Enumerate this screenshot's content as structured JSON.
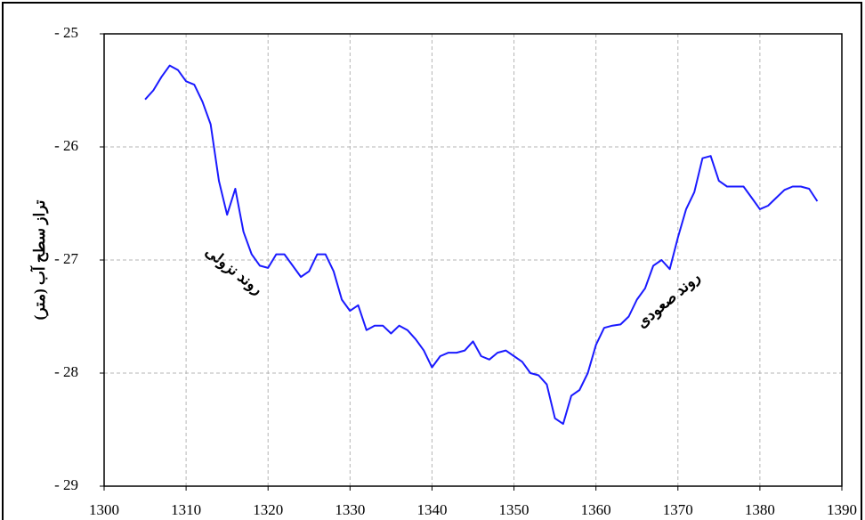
{
  "chart_data": {
    "type": "line",
    "y_label": "تراز سطح آب (متر)",
    "annotations": [
      "روند نزولی",
      "روند صعودی"
    ],
    "x": [
      1305,
      1306,
      1307,
      1308,
      1309,
      1310,
      1311,
      1312,
      1313,
      1314,
      1315,
      1316,
      1317,
      1318,
      1319,
      1320,
      1321,
      1322,
      1323,
      1324,
      1325,
      1326,
      1327,
      1328,
      1329,
      1330,
      1331,
      1332,
      1333,
      1334,
      1335,
      1336,
      1337,
      1338,
      1339,
      1340,
      1341,
      1342,
      1343,
      1344,
      1345,
      1346,
      1347,
      1348,
      1349,
      1350,
      1351,
      1352,
      1353,
      1354,
      1355,
      1356,
      1357,
      1358,
      1359,
      1360,
      1361,
      1362,
      1363,
      1364,
      1365,
      1366,
      1367,
      1368,
      1369,
      1370,
      1371,
      1372,
      1373,
      1374,
      1375,
      1376,
      1377,
      1378,
      1379,
      1380,
      1381,
      1382,
      1383,
      1384,
      1385,
      1386,
      1387
    ],
    "values": [
      -25.58,
      -25.5,
      -25.38,
      -25.28,
      -25.32,
      -25.42,
      -25.45,
      -25.6,
      -25.8,
      -26.3,
      -26.6,
      -26.37,
      -26.75,
      -26.95,
      -27.05,
      -27.07,
      -26.95,
      -26.95,
      -27.05,
      -27.15,
      -27.1,
      -26.95,
      -26.95,
      -27.1,
      -27.35,
      -27.45,
      -27.4,
      -27.62,
      -27.58,
      -27.58,
      -27.65,
      -27.58,
      -27.62,
      -27.7,
      -27.8,
      -27.95,
      -27.85,
      -27.82,
      -27.82,
      -27.8,
      -27.72,
      -27.85,
      -27.88,
      -27.82,
      -27.8,
      -27.85,
      -27.9,
      -28.0,
      -28.02,
      -28.1,
      -28.4,
      -28.45,
      -28.2,
      -28.15,
      -28.0,
      -27.75,
      -27.6,
      -27.58,
      -27.57,
      -27.5,
      -27.35,
      -27.25,
      -27.05,
      -27.0,
      -27.08,
      -26.8,
      -26.55,
      -26.4,
      -26.1,
      -26.08,
      -26.3,
      -26.35,
      -26.35,
      -26.35,
      -26.45,
      -26.55,
      -26.52,
      -26.45,
      -26.38,
      -26.35,
      -26.35,
      -26.37,
      -26.48
    ],
    "color": "#1a1aff",
    "xlim": [
      1300,
      1390
    ],
    "xticks": [
      1300,
      1310,
      1320,
      1330,
      1340,
      1350,
      1360,
      1370,
      1380,
      1390
    ],
    "ylim": [
      -29,
      -25
    ],
    "yticks": [
      {
        "value": -25,
        "label": "- 25"
      },
      {
        "value": -26,
        "label": "- 26"
      },
      {
        "value": -27,
        "label": "- 27"
      },
      {
        "value": -28,
        "label": "- 28"
      },
      {
        "value": -29,
        "label": "- 29"
      }
    ],
    "grid": true
  }
}
